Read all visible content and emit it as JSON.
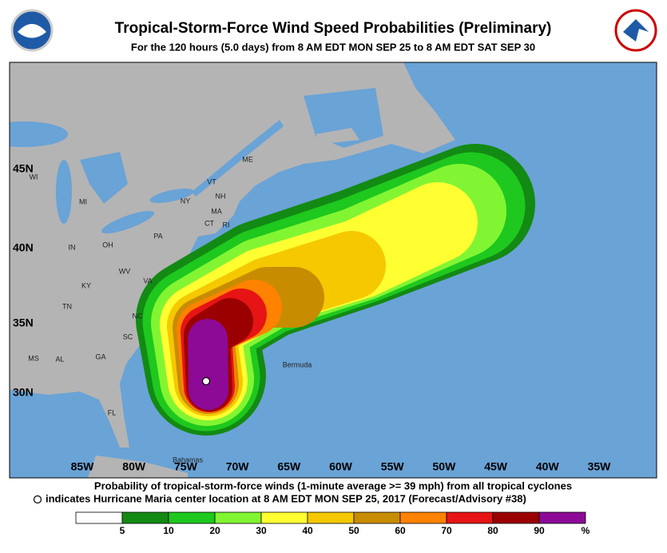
{
  "header": {
    "title": "Tropical-Storm-Force Wind Speed Probabilities (Preliminary)",
    "subtitle": "For the 120 hours (5.0 days) from 8 AM EDT MON SEP 25 to 8 AM EDT SAT SEP 30"
  },
  "map": {
    "lat_labels": [
      "45N",
      "40N",
      "35N",
      "30N"
    ],
    "lon_labels": [
      "85W",
      "80W",
      "75W",
      "70W",
      "65W",
      "60W",
      "55W",
      "50W",
      "45W",
      "40W",
      "35W"
    ],
    "place_labels": [
      "ME",
      "VT",
      "NH",
      "NY",
      "MA",
      "CT",
      "RI",
      "PA",
      "MI",
      "WI",
      "OH",
      "IN",
      "WV",
      "VA",
      "KY",
      "TN",
      "NC",
      "SC",
      "GA",
      "AL",
      "MS",
      "FL",
      "Bermuda",
      "Bahamas"
    ]
  },
  "footer": {
    "line1": "Probability of tropical-storm-force winds (1-minute average >= 39 mph) from all tropical cyclones",
    "line2": "indicates Hurricane Maria center location at 8 AM EDT MON SEP 25, 2017 (Forecast/Advisory #38)"
  },
  "legend": {
    "colors": [
      "#ffffff",
      "#138a13",
      "#1ec81e",
      "#82f532",
      "#ffff32",
      "#f5c800",
      "#c88c00",
      "#ff8200",
      "#e61414",
      "#9b0000",
      "#8c0a96"
    ],
    "ticks": [
      5,
      10,
      20,
      30,
      40,
      50,
      60,
      70,
      80,
      90
    ],
    "unit": "%"
  }
}
